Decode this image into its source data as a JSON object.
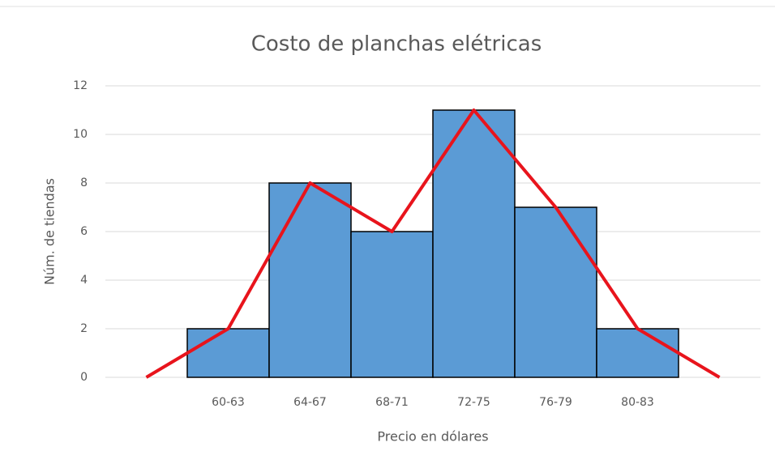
{
  "chart_data": {
    "type": "histogram",
    "title": "Costo de planchas elétricas",
    "x_label": "Precio en dólares",
    "y_label": "Núm. de tiendas",
    "categories": [
      null,
      "60-63",
      "64-67",
      "68-71",
      "72-75",
      "76-79",
      "80-83",
      null
    ],
    "series": [
      {
        "type": "bar",
        "color": "#5b9bd5",
        "values": [
          null,
          2,
          8,
          6,
          11,
          7,
          2,
          null
        ]
      },
      {
        "type": "line",
        "color": "#e8141c",
        "values": [
          0,
          2,
          8,
          6,
          11,
          7,
          2,
          0
        ]
      }
    ],
    "ylim": [
      0,
      12
    ],
    "yticks": [
      0,
      2,
      4,
      6,
      8,
      10,
      12
    ],
    "grid": true
  }
}
